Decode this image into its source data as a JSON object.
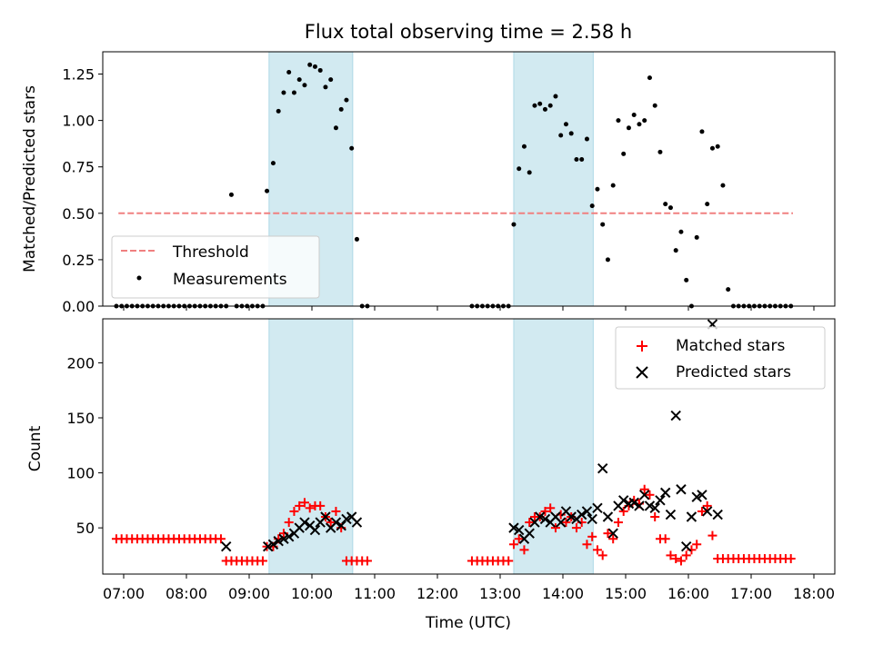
{
  "title": "Flux total observing time = 2.58 h",
  "colors": {
    "threshold": "#f08080",
    "measurements": "#000000",
    "matched": "#ff0000",
    "predicted": "#000000",
    "shade": "#add8e6"
  },
  "chart_data": [
    {
      "type": "scatter",
      "ylabel": "Matched/Predicted stars",
      "ylim": [
        0,
        1.37
      ],
      "yticks": [
        "0.00",
        "0.25",
        "0.50",
        "0.75",
        "1.00",
        "1.25"
      ],
      "ytick_values": [
        0,
        0.25,
        0.5,
        0.75,
        1.0,
        1.25
      ],
      "xlim": [
        "06:40",
        "18:20"
      ],
      "legend": {
        "position": "lower-left",
        "entries": [
          "Threshold",
          "Measurements"
        ]
      },
      "threshold": {
        "name": "Threshold",
        "value": 0.5,
        "x_start": "06:55",
        "x_end": "17:40"
      },
      "shaded_intervals": [
        [
          "09:19",
          "10:39"
        ],
        [
          "13:13",
          "14:29"
        ]
      ],
      "series": [
        {
          "name": "Measurements",
          "x": [
            "06:53",
            "06:58",
            "07:03",
            "07:08",
            "07:13",
            "07:18",
            "07:23",
            "07:28",
            "07:33",
            "07:38",
            "07:43",
            "07:48",
            "07:53",
            "07:58",
            "08:03",
            "08:08",
            "08:13",
            "08:18",
            "08:23",
            "08:28",
            "08:33",
            "08:38",
            "08:43",
            "08:48",
            "08:53",
            "08:58",
            "09:03",
            "09:08",
            "09:13",
            "09:17",
            "09:23",
            "09:28",
            "09:33",
            "09:38",
            "09:43",
            "09:48",
            "09:53",
            "09:58",
            "10:03",
            "10:08",
            "10:13",
            "10:18",
            "10:23",
            "10:28",
            "10:33",
            "10:38",
            "10:43",
            "10:48",
            "10:53",
            "12:33",
            "12:38",
            "12:43",
            "12:48",
            "12:53",
            "12:58",
            "13:03",
            "13:08",
            "13:13",
            "13:18",
            "13:23",
            "13:28",
            "13:33",
            "13:38",
            "13:43",
            "13:48",
            "13:53",
            "13:58",
            "14:03",
            "14:08",
            "14:13",
            "14:18",
            "14:23",
            "14:28",
            "14:33",
            "14:38",
            "14:43",
            "14:48",
            "14:53",
            "14:58",
            "15:03",
            "15:08",
            "15:13",
            "15:18",
            "15:23",
            "15:28",
            "15:33",
            "15:38",
            "15:43",
            "15:48",
            "15:53",
            "15:58",
            "16:03",
            "16:08",
            "16:13",
            "16:18",
            "16:23",
            "16:28",
            "16:33",
            "16:38",
            "16:43",
            "16:48",
            "16:53",
            "16:58",
            "17:03",
            "17:08",
            "17:13",
            "17:18",
            "17:23",
            "17:28",
            "17:33",
            "17:38"
          ],
          "y": [
            0,
            0,
            0,
            0,
            0,
            0,
            0,
            0,
            0,
            0,
            0,
            0,
            0,
            0,
            0,
            0,
            0,
            0,
            0,
            0,
            0,
            0,
            0.6,
            0,
            0,
            0,
            0,
            0,
            0,
            0.62,
            0.77,
            1.05,
            1.15,
            1.26,
            1.15,
            1.22,
            1.19,
            1.3,
            1.29,
            1.27,
            1.18,
            1.22,
            0.96,
            1.06,
            1.11,
            0.85,
            0.36,
            0,
            0,
            0,
            0,
            0,
            0,
            0,
            0,
            0,
            0,
            0.44,
            0.74,
            0.86,
            0.72,
            1.08,
            1.09,
            1.06,
            1.08,
            1.13,
            0.92,
            0.98,
            0.93,
            0.79,
            0.79,
            0.9,
            0.54,
            0.63,
            0.44,
            0.25,
            0.65,
            1.0,
            0.82,
            0.96,
            1.03,
            0.98,
            1.0,
            1.23,
            1.08,
            0.83,
            0.55,
            0.53,
            0.3,
            0.4,
            0.14,
            0,
            0.37,
            0.94,
            0.55,
            0.85,
            0.86,
            0.65,
            0.09,
            0,
            0,
            0,
            0,
            0,
            0,
            0,
            0,
            0,
            0,
            0,
            0
          ]
        }
      ]
    },
    {
      "type": "scatter",
      "ylabel": "Count",
      "xlabel": "Time (UTC)",
      "ylim": [
        8,
        240
      ],
      "yticks": [
        "50",
        "100",
        "150",
        "200"
      ],
      "ytick_values": [
        50,
        100,
        150,
        200
      ],
      "xlim": [
        "06:40",
        "18:20"
      ],
      "xticks": [
        "07:00",
        "08:00",
        "09:00",
        "10:00",
        "11:00",
        "12:00",
        "13:00",
        "14:00",
        "15:00",
        "16:00",
        "17:00",
        "18:00"
      ],
      "legend": {
        "position": "top-right",
        "entries": [
          "Matched stars",
          "Predicted stars"
        ]
      },
      "shaded_intervals": [
        [
          "09:19",
          "10:39"
        ],
        [
          "13:13",
          "14:29"
        ]
      ],
      "series": [
        {
          "name": "Matched stars",
          "x": [
            "06:53",
            "06:58",
            "07:03",
            "07:08",
            "07:13",
            "07:18",
            "07:23",
            "07:28",
            "07:33",
            "07:38",
            "07:43",
            "07:48",
            "07:53",
            "07:58",
            "08:03",
            "08:08",
            "08:13",
            "08:18",
            "08:23",
            "08:28",
            "08:33",
            "08:38",
            "08:43",
            "08:48",
            "08:53",
            "08:58",
            "09:03",
            "09:08",
            "09:13",
            "09:17",
            "09:23",
            "09:28",
            "09:33",
            "09:38",
            "09:43",
            "09:48",
            "09:53",
            "09:58",
            "10:03",
            "10:08",
            "10:13",
            "10:18",
            "10:23",
            "10:28",
            "10:33",
            "10:38",
            "10:43",
            "10:48",
            "10:53",
            "12:33",
            "12:38",
            "12:43",
            "12:48",
            "12:53",
            "12:58",
            "13:03",
            "13:08",
            "13:13",
            "13:18",
            "13:23",
            "13:28",
            "13:33",
            "13:38",
            "13:43",
            "13:48",
            "13:53",
            "13:58",
            "14:03",
            "14:08",
            "14:13",
            "14:18",
            "14:23",
            "14:28",
            "14:33",
            "14:38",
            "14:43",
            "14:48",
            "14:53",
            "14:58",
            "15:03",
            "15:08",
            "15:13",
            "15:18",
            "15:23",
            "15:28",
            "15:33",
            "15:38",
            "15:43",
            "15:48",
            "15:53",
            "15:58",
            "16:03",
            "16:08",
            "16:13",
            "16:18",
            "16:23",
            "16:28",
            "16:33",
            "16:38",
            "16:43",
            "16:48",
            "16:53",
            "16:58",
            "17:03",
            "17:08",
            "17:13",
            "17:18",
            "17:23",
            "17:28",
            "17:33",
            "17:38"
          ],
          "y": [
            40,
            40,
            40,
            40,
            40,
            40,
            40,
            40,
            40,
            40,
            40,
            40,
            40,
            40,
            40,
            40,
            40,
            40,
            40,
            40,
            40,
            20,
            20,
            20,
            20,
            20,
            20,
            20,
            20,
            33,
            33,
            40,
            45,
            55,
            65,
            70,
            73,
            68,
            70,
            70,
            60,
            55,
            65,
            50,
            20,
            20,
            20,
            20,
            20,
            20,
            20,
            20,
            20,
            20,
            20,
            20,
            20,
            35,
            40,
            30,
            55,
            60,
            60,
            65,
            68,
            50,
            62,
            55,
            60,
            50,
            55,
            35,
            42,
            30,
            25,
            45,
            40,
            55,
            65,
            70,
            75,
            72,
            85,
            80,
            60,
            40,
            40,
            25,
            22,
            20,
            25,
            30,
            35,
            65,
            70,
            43,
            22,
            22,
            22,
            22,
            22,
            22,
            22,
            22,
            22,
            22,
            22,
            22,
            22,
            22,
            22
          ]
        },
        {
          "name": "Predicted stars",
          "x": [
            "08:38",
            "09:18",
            "09:23",
            "09:28",
            "09:33",
            "09:38",
            "09:43",
            "09:48",
            "09:53",
            "09:58",
            "10:03",
            "10:08",
            "10:13",
            "10:18",
            "10:23",
            "10:28",
            "10:33",
            "10:38",
            "10:43",
            "13:13",
            "13:18",
            "13:23",
            "13:28",
            "13:33",
            "13:38",
            "13:43",
            "13:48",
            "13:53",
            "13:58",
            "14:03",
            "14:08",
            "14:13",
            "14:18",
            "14:23",
            "14:28",
            "14:33",
            "14:38",
            "14:43",
            "14:48",
            "14:53",
            "14:58",
            "15:03",
            "15:08",
            "15:13",
            "15:18",
            "15:23",
            "15:28",
            "15:33",
            "15:38",
            "15:43",
            "15:48",
            "15:53",
            "15:58",
            "16:03",
            "16:08",
            "16:13",
            "16:18",
            "16:23",
            "16:28"
          ],
          "y": [
            33,
            33,
            35,
            38,
            40,
            42,
            45,
            50,
            55,
            52,
            48,
            55,
            60,
            50,
            55,
            52,
            58,
            60,
            55,
            50,
            48,
            40,
            45,
            55,
            60,
            58,
            55,
            60,
            55,
            65,
            60,
            58,
            62,
            65,
            58,
            68,
            104,
            60,
            45,
            70,
            75,
            72,
            73,
            70,
            80,
            70,
            68,
            75,
            82,
            62,
            152,
            85,
            33,
            60,
            78,
            80,
            65,
            235,
            62
          ]
        }
      ]
    }
  ]
}
